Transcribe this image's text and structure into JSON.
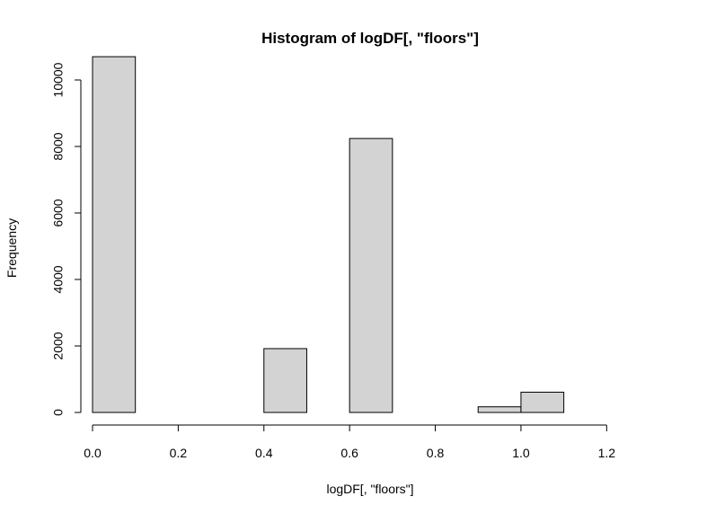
{
  "chart_data": {
    "type": "bar",
    "title": "Histogram of logDF[, \"floors\"]",
    "xlabel": "logDF[, \"floors\"]",
    "ylabel": "Frequency",
    "xlim": [
      0.0,
      1.3
    ],
    "ylim": [
      0,
      11000
    ],
    "x_ticks": [
      0.0,
      0.2,
      0.4,
      0.6,
      0.8,
      1.0,
      1.2
    ],
    "x_tick_labels": [
      "0.0",
      "0.2",
      "0.4",
      "0.6",
      "0.8",
      "1.0",
      "1.2"
    ],
    "y_ticks": [
      0,
      2000,
      4000,
      6000,
      8000,
      10000
    ],
    "y_tick_labels": [
      "0",
      "2000",
      "4000",
      "6000",
      "8000",
      "10000"
    ],
    "bins": [
      {
        "start": 0.0,
        "end": 0.1,
        "value": 10700
      },
      {
        "start": 0.1,
        "end": 0.2,
        "value": 0
      },
      {
        "start": 0.2,
        "end": 0.3,
        "value": 0
      },
      {
        "start": 0.3,
        "end": 0.4,
        "value": 0
      },
      {
        "start": 0.4,
        "end": 0.5,
        "value": 1920
      },
      {
        "start": 0.5,
        "end": 0.6,
        "value": 0
      },
      {
        "start": 0.6,
        "end": 0.7,
        "value": 8240
      },
      {
        "start": 0.7,
        "end": 0.8,
        "value": 0
      },
      {
        "start": 0.8,
        "end": 0.9,
        "value": 0
      },
      {
        "start": 0.9,
        "end": 1.0,
        "value": 170
      },
      {
        "start": 1.0,
        "end": 1.1,
        "value": 610
      },
      {
        "start": 1.1,
        "end": 1.2,
        "value": 0
      },
      {
        "start": 1.2,
        "end": 1.3,
        "value": 0
      }
    ],
    "bar_fill": "#d3d3d3",
    "bar_stroke": "#000000",
    "axis_color": "#000000",
    "grid": false
  }
}
